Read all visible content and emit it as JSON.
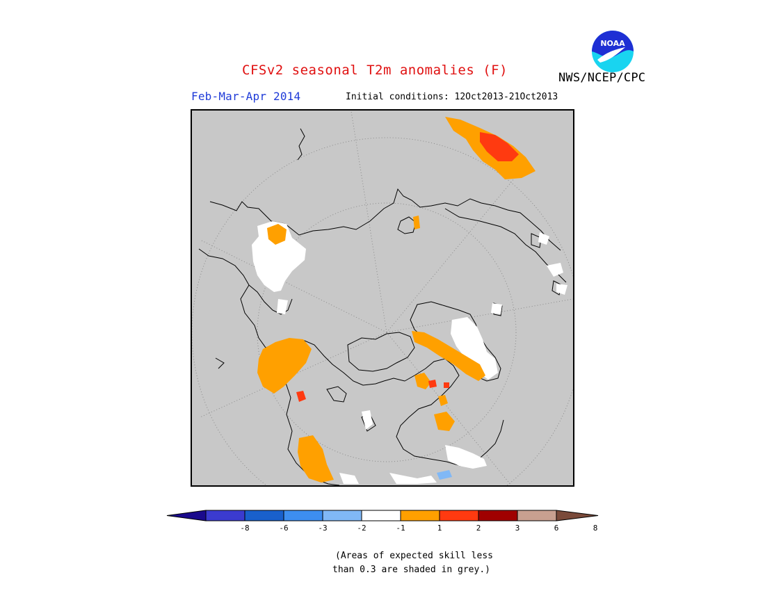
{
  "header": {
    "title": "CFSv2 seasonal T2m anomalies (F)",
    "agency": "NWS/NCEP/CPC",
    "period": "Feb-Mar-Apr 2014",
    "initial_conditions": "Initial conditions: 12Oct2013-21Oct2013"
  },
  "logo": {
    "text": "NOAA",
    "icon": "noaa-logo-icon",
    "colors": {
      "blue": "#1e2fd4",
      "cyan": "#19d4f0"
    }
  },
  "map": {
    "projection": "north polar stereographic",
    "background_color": "#c8c8c8"
  },
  "legend": {
    "colors": [
      "#1a0a8c",
      "#3b3bcf",
      "#1960cc",
      "#3d8ef0",
      "#80b8f6",
      "#ffffff",
      "#ffa000",
      "#ff3a10",
      "#a00000",
      "#c8a090",
      "#7a4a3a"
    ],
    "tick_labels": [
      "-8",
      "-6",
      "-3",
      "-2",
      "-1",
      "1",
      "2",
      "3",
      "6",
      "8"
    ]
  },
  "note": {
    "line1": "(Areas of expected skill less",
    "line2": "than 0.3 are shaded in grey.)"
  }
}
